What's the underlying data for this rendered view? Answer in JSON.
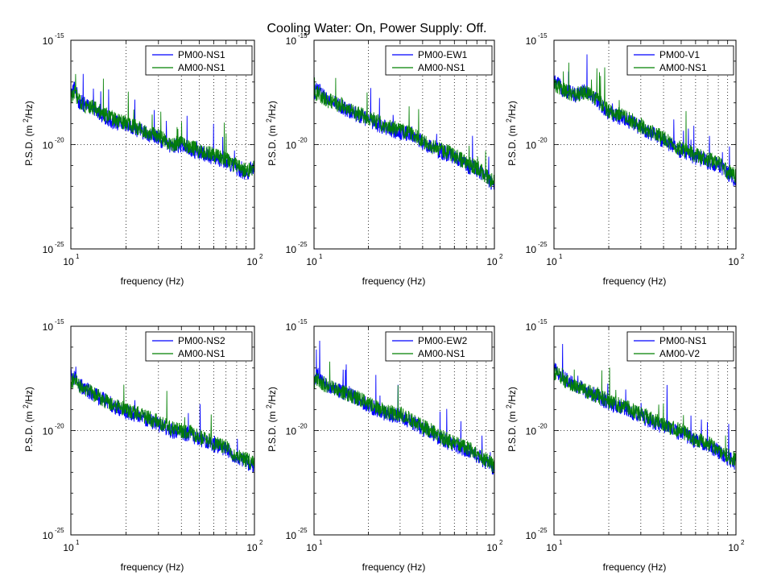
{
  "figure": {
    "title": "Cooling Water: On, Power Supply: Off."
  },
  "colors": {
    "pm": "#0000ff",
    "am": "#008000",
    "grid": "#000000"
  },
  "chart_data": [
    {
      "type": "line",
      "xlabel": "frequency (Hz)",
      "ylabel": "P.S.D. (m",
      "ylabel_sup": "2",
      "ylabel_tail": "/Hz)",
      "xscale": "log",
      "yscale": "log",
      "xlim": [
        10,
        100
      ],
      "ylim": [
        1e-25,
        1e-15
      ],
      "xticks": [
        {
          "base": "10",
          "exp": "1"
        },
        {
          "base": "10",
          "exp": "2"
        }
      ],
      "yticks": [
        {
          "base": "10",
          "exp": "-15"
        },
        {
          "base": "10",
          "exp": "-20"
        },
        {
          "base": "10",
          "exp": "-25"
        }
      ],
      "grid": "dotted at 20-90 Hz and 1e-20",
      "legend_position": "top-right",
      "series": [
        {
          "name": "PM00-NS1",
          "color": "#0000ff",
          "x": [
            10,
            10.5,
            11,
            12,
            13,
            15,
            17,
            20,
            25,
            30,
            35,
            40,
            45,
            50,
            60,
            70,
            80,
            90,
            100
          ],
          "y_exp": [
            -17.6,
            -17.2,
            -17.9,
            -18.1,
            -18.3,
            -18.6,
            -18.9,
            -19.1,
            -19.4,
            -19.7,
            -20.1,
            -20.0,
            -20.2,
            -20.4,
            -20.6,
            -20.8,
            -21.1,
            -21.4,
            -21.0
          ]
        },
        {
          "name": "AM00-NS1",
          "color": "#008000",
          "x": [
            10,
            10.5,
            11,
            12,
            13,
            15,
            17,
            20,
            25,
            30,
            35,
            40,
            45,
            50,
            60,
            70,
            80,
            90,
            100
          ],
          "y_exp": [
            -17.7,
            -17.5,
            -17.9,
            -18.1,
            -18.2,
            -18.5,
            -18.8,
            -19.0,
            -19.3,
            -19.6,
            -20.0,
            -19.9,
            -20.1,
            -20.3,
            -20.5,
            -20.7,
            -21.0,
            -21.3,
            -21.1
          ]
        }
      ]
    },
    {
      "type": "line",
      "xlabel": "frequency (Hz)",
      "ylabel": "P.S.D. (m",
      "ylabel_sup": "2",
      "ylabel_tail": "/Hz)",
      "xscale": "log",
      "yscale": "log",
      "xlim": [
        10,
        100
      ],
      "ylim": [
        1e-25,
        1e-15
      ],
      "xticks": [
        {
          "base": "10",
          "exp": "1"
        },
        {
          "base": "10",
          "exp": "2"
        }
      ],
      "yticks": [
        {
          "base": "10",
          "exp": "-15"
        },
        {
          "base": "10",
          "exp": "-20"
        },
        {
          "base": "10",
          "exp": "-25"
        }
      ],
      "grid": "dotted at 20-90 Hz and 1e-20",
      "legend_position": "top-right",
      "series": [
        {
          "name": "PM00-EW1",
          "color": "#0000ff",
          "x": [
            10,
            10.5,
            11,
            12,
            13,
            15,
            17,
            20,
            25,
            30,
            35,
            40,
            45,
            50,
            60,
            70,
            80,
            90,
            100
          ],
          "y_exp": [
            -17.5,
            -17.3,
            -17.6,
            -17.9,
            -18.0,
            -18.3,
            -18.5,
            -18.8,
            -19.2,
            -19.4,
            -19.5,
            -19.9,
            -20.2,
            -20.3,
            -20.6,
            -21.0,
            -21.2,
            -21.6,
            -21.9
          ]
        },
        {
          "name": "AM00-NS1",
          "color": "#008000",
          "x": [
            10,
            10.5,
            11,
            12,
            13,
            15,
            17,
            20,
            25,
            30,
            35,
            40,
            45,
            50,
            60,
            70,
            80,
            90,
            100
          ],
          "y_exp": [
            -17.6,
            -17.5,
            -17.7,
            -17.9,
            -18.0,
            -18.2,
            -18.5,
            -18.7,
            -19.1,
            -19.3,
            -19.5,
            -19.8,
            -20.1,
            -20.2,
            -20.5,
            -20.9,
            -21.1,
            -21.5,
            -21.8
          ]
        }
      ]
    },
    {
      "type": "line",
      "xlabel": "frequency (Hz)",
      "ylabel": "P.S.D. (m",
      "ylabel_sup": "2",
      "ylabel_tail": "/Hz)",
      "xscale": "log",
      "yscale": "log",
      "xlim": [
        10,
        100
      ],
      "ylim": [
        1e-25,
        1e-15
      ],
      "xticks": [
        {
          "base": "10",
          "exp": "1"
        },
        {
          "base": "10",
          "exp": "2"
        }
      ],
      "yticks": [
        {
          "base": "10",
          "exp": "-15"
        },
        {
          "base": "10",
          "exp": "-20"
        },
        {
          "base": "10",
          "exp": "-25"
        }
      ],
      "grid": "dotted at 20-90 Hz and 1e-20",
      "legend_position": "top-right",
      "series": [
        {
          "name": "PM00-V1",
          "color": "#0000ff",
          "x": [
            10,
            10.5,
            11,
            12,
            13,
            15,
            17,
            20,
            25,
            30,
            35,
            40,
            45,
            50,
            60,
            70,
            80,
            90,
            100
          ],
          "y_exp": [
            -17.0,
            -17.1,
            -17.3,
            -17.5,
            -17.6,
            -17.4,
            -17.8,
            -18.5,
            -18.8,
            -19.2,
            -19.5,
            -19.8,
            -20.1,
            -20.3,
            -20.6,
            -20.8,
            -21.0,
            -21.4,
            -21.7
          ]
        },
        {
          "name": "AM00-NS1",
          "color": "#008000",
          "x": [
            10,
            10.5,
            11,
            12,
            13,
            15,
            17,
            20,
            25,
            30,
            35,
            40,
            45,
            50,
            60,
            70,
            80,
            90,
            100
          ],
          "y_exp": [
            -17.1,
            -17.2,
            -17.3,
            -17.5,
            -17.6,
            -17.5,
            -17.8,
            -18.4,
            -18.7,
            -19.1,
            -19.4,
            -19.7,
            -20.0,
            -20.2,
            -20.5,
            -20.7,
            -20.9,
            -21.3,
            -21.5
          ]
        }
      ]
    },
    {
      "type": "line",
      "xlabel": "frequency (Hz)",
      "ylabel": "P.S.D. (m",
      "ylabel_sup": "2",
      "ylabel_tail": "/Hz)",
      "xscale": "log",
      "yscale": "log",
      "xlim": [
        10,
        100
      ],
      "ylim": [
        1e-25,
        1e-15
      ],
      "xticks": [
        {
          "base": "10",
          "exp": "1"
        },
        {
          "base": "10",
          "exp": "2"
        }
      ],
      "yticks": [
        {
          "base": "10",
          "exp": "-15"
        },
        {
          "base": "10",
          "exp": "-20"
        },
        {
          "base": "10",
          "exp": "-25"
        }
      ],
      "grid": "dotted at 20-90 Hz and 1e-20",
      "legend_position": "top-right",
      "series": [
        {
          "name": "PM00-NS2",
          "color": "#0000ff",
          "x": [
            10,
            10.5,
            11,
            12,
            13,
            15,
            17,
            20,
            25,
            30,
            35,
            40,
            45,
            50,
            60,
            70,
            80,
            90,
            100
          ],
          "y_exp": [
            -17.4,
            -17.5,
            -17.8,
            -18.0,
            -18.2,
            -18.5,
            -18.8,
            -19.1,
            -19.4,
            -19.7,
            -20.0,
            -20.1,
            -20.2,
            -20.4,
            -20.7,
            -20.9,
            -21.3,
            -21.5,
            -21.7
          ]
        },
        {
          "name": "AM00-NS1",
          "color": "#008000",
          "x": [
            10,
            10.5,
            11,
            12,
            13,
            15,
            17,
            20,
            25,
            30,
            35,
            40,
            45,
            50,
            60,
            70,
            80,
            90,
            100
          ],
          "y_exp": [
            -17.6,
            -17.6,
            -17.8,
            -18.0,
            -18.2,
            -18.5,
            -18.8,
            -19.0,
            -19.3,
            -19.6,
            -19.9,
            -20.0,
            -20.1,
            -20.3,
            -20.6,
            -20.8,
            -21.2,
            -21.4,
            -21.6
          ]
        }
      ]
    },
    {
      "type": "line",
      "xlabel": "frequency (Hz)",
      "ylabel": "P.S.D. (m",
      "ylabel_sup": "2",
      "ylabel_tail": "/Hz)",
      "xscale": "log",
      "yscale": "log",
      "xlim": [
        10,
        100
      ],
      "ylim": [
        1e-25,
        1e-15
      ],
      "xticks": [
        {
          "base": "10",
          "exp": "1"
        },
        {
          "base": "10",
          "exp": "2"
        }
      ],
      "yticks": [
        {
          "base": "10",
          "exp": "-15"
        },
        {
          "base": "10",
          "exp": "-20"
        },
        {
          "base": "10",
          "exp": "-25"
        }
      ],
      "grid": "dotted at 20-90 Hz and 1e-20",
      "legend_position": "top-right",
      "series": [
        {
          "name": "PM00-EW2",
          "color": "#0000ff",
          "x": [
            10,
            10.5,
            11,
            12,
            13,
            15,
            17,
            20,
            25,
            30,
            35,
            40,
            45,
            50,
            60,
            70,
            80,
            90,
            100
          ],
          "y_exp": [
            -17.6,
            -17.3,
            -17.7,
            -17.9,
            -18.0,
            -18.2,
            -18.4,
            -18.8,
            -19.2,
            -19.3,
            -19.6,
            -19.9,
            -20.1,
            -20.4,
            -20.7,
            -20.9,
            -21.2,
            -21.5,
            -21.9
          ]
        },
        {
          "name": "AM00-NS1",
          "color": "#008000",
          "x": [
            10,
            10.5,
            11,
            12,
            13,
            15,
            17,
            20,
            25,
            30,
            35,
            40,
            45,
            50,
            60,
            70,
            80,
            90,
            100
          ],
          "y_exp": [
            -17.7,
            -17.5,
            -17.7,
            -17.9,
            -18.0,
            -18.2,
            -18.4,
            -18.7,
            -19.1,
            -19.2,
            -19.5,
            -19.8,
            -20.0,
            -20.3,
            -20.6,
            -20.8,
            -21.1,
            -21.4,
            -21.7
          ]
        }
      ]
    },
    {
      "type": "line",
      "xlabel": "frequency (Hz)",
      "ylabel": "P.S.D. (m",
      "ylabel_sup": "2",
      "ylabel_tail": "/Hz)",
      "xscale": "log",
      "yscale": "log",
      "xlim": [
        10,
        100
      ],
      "ylim": [
        1e-25,
        1e-15
      ],
      "xticks": [
        {
          "base": "10",
          "exp": "1"
        },
        {
          "base": "10",
          "exp": "2"
        }
      ],
      "yticks": [
        {
          "base": "10",
          "exp": "-15"
        },
        {
          "base": "10",
          "exp": "-20"
        },
        {
          "base": "10",
          "exp": "-25"
        }
      ],
      "grid": "dotted at 20-90 Hz and 1e-20",
      "legend_position": "top-right",
      "series": [
        {
          "name": "PM00-NS1",
          "color": "#0000ff",
          "x": [
            10,
            10.5,
            11,
            12,
            13,
            15,
            17,
            20,
            25,
            30,
            35,
            40,
            45,
            50,
            60,
            70,
            80,
            90,
            100
          ],
          "y_exp": [
            -17.1,
            -17.2,
            -17.4,
            -17.6,
            -17.8,
            -18.1,
            -18.3,
            -18.7,
            -19.0,
            -19.3,
            -19.6,
            -19.8,
            -20.0,
            -20.1,
            -20.5,
            -20.7,
            -21.0,
            -21.3,
            -21.6
          ]
        },
        {
          "name": "AM00-V2",
          "color": "#008000",
          "x": [
            10,
            10.5,
            11,
            12,
            13,
            15,
            17,
            20,
            25,
            30,
            35,
            40,
            45,
            50,
            60,
            70,
            80,
            90,
            100
          ],
          "y_exp": [
            -17.3,
            -17.3,
            -17.5,
            -17.7,
            -17.8,
            -18.1,
            -18.3,
            -18.6,
            -18.9,
            -19.2,
            -19.5,
            -19.7,
            -19.9,
            -20.0,
            -20.4,
            -20.6,
            -20.9,
            -21.2,
            -21.4
          ]
        }
      ]
    }
  ]
}
